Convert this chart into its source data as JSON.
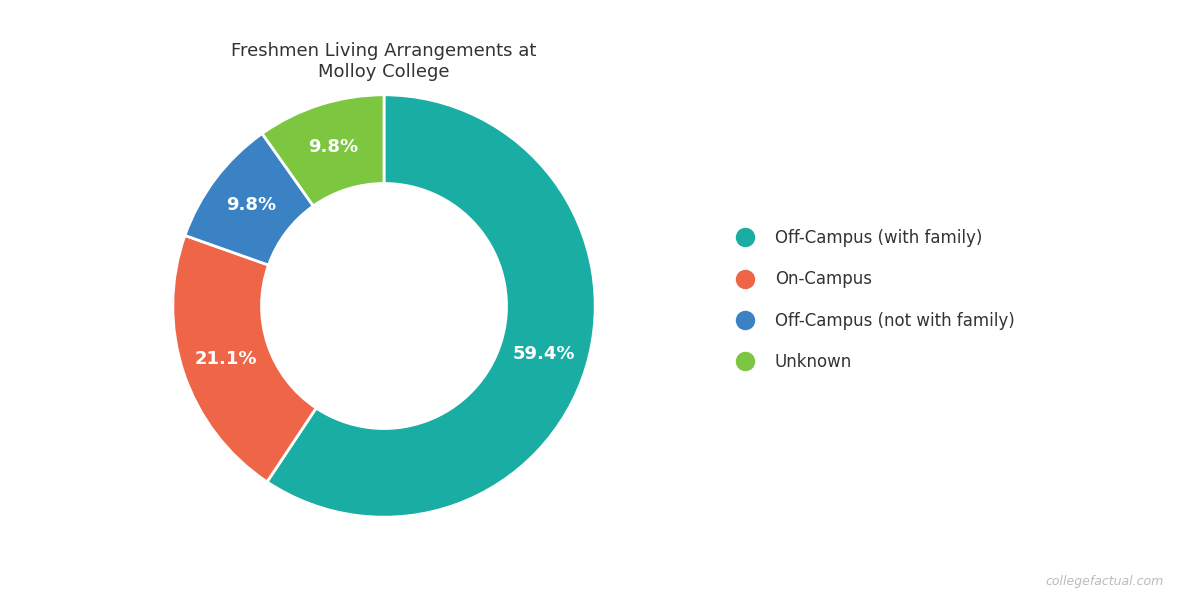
{
  "title": "Freshmen Living Arrangements at\nMolloy College",
  "labels": [
    "Off-Campus (with family)",
    "On-Campus",
    "Off-Campus (not with family)",
    "Unknown"
  ],
  "values": [
    59.4,
    21.1,
    9.8,
    9.8
  ],
  "colors": [
    "#1AADA4",
    "#EF6547",
    "#3B82C4",
    "#7DC63F"
  ],
  "pct_labels": [
    "59.4%",
    "21.1%",
    "9.8%",
    "9.8%"
  ],
  "pct_label_colors": [
    "white",
    "white",
    "white",
    "white"
  ],
  "wedge_edge_color": "white",
  "background_color": "#ffffff",
  "title_fontsize": 13,
  "legend_fontsize": 12,
  "pct_fontsize": 13,
  "donut_width": 0.42,
  "watermark": "collegefactual.com"
}
